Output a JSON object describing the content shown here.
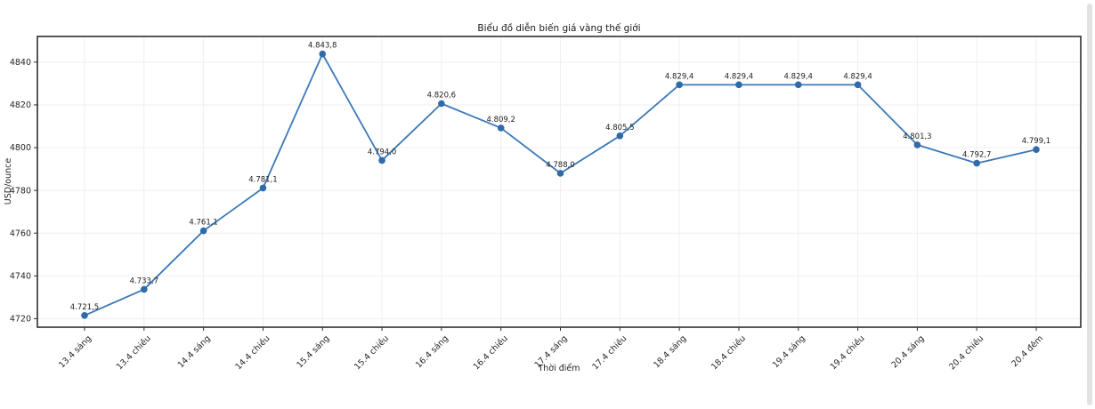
{
  "page": {
    "background": "#ffffff"
  },
  "chart_data": {
    "type": "line",
    "title": "Biểu đồ diễn biến giá vàng thế giới",
    "xlabel": "Thời điểm",
    "ylabel": "USD/ounce",
    "categories": [
      "13.4 sáng",
      "13.4 chiều",
      "14.4 sáng",
      "14.4 chiều",
      "15.4 sáng",
      "15.4 chiều",
      "16.4 sáng",
      "16.4 chiều",
      "17.4 sáng",
      "17.4 chiều",
      "18.4 sáng",
      "18.4 chiều",
      "19.4 sáng",
      "19.4 chiều",
      "20.4 sáng",
      "20.4 chiều",
      "20.4 đêm"
    ],
    "series": [
      {
        "name": "gold-price-usd-ounce",
        "values": [
          4721.5,
          4733.7,
          4761.1,
          4781.1,
          4843.8,
          4794.0,
          4820.6,
          4809.2,
          4788.0,
          4805.5,
          4829.4,
          4829.4,
          4829.4,
          4829.4,
          4801.3,
          4792.7,
          4799.1
        ],
        "value_labels": [
          "4.721,5",
          "4.733,7",
          "4.761,1",
          "4.781,1",
          "4.843,8",
          "4.794,0",
          "4.820,6",
          "4.809,2",
          "4.788,0",
          "4.805,5",
          "4.829,4",
          "4.829,4",
          "4.829,4",
          "4.829,4",
          "4.801,3",
          "4.792,7",
          "4.799,1"
        ]
      }
    ],
    "y_ticks": [
      4720,
      4740,
      4760,
      4780,
      4800,
      4820,
      4840
    ],
    "y_tick_labels": [
      "4720",
      "4740",
      "4760",
      "4780",
      "4800",
      "4820",
      "4840"
    ],
    "ylim": [
      4716,
      4852
    ],
    "grid": true,
    "legend": "none",
    "colors": {
      "line": "#3c79b8",
      "marker": "#2e6ba8",
      "grid": "#efefef",
      "frame": "#2e2e2e",
      "text": "#1a1a1a"
    }
  }
}
